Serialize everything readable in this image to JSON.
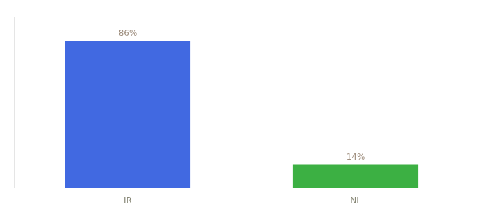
{
  "chart_data": {
    "type": "bar",
    "categories": [
      "IR",
      "NL"
    ],
    "values": [
      86,
      14
    ],
    "value_labels": [
      "86%",
      "14%"
    ],
    "colors": [
      "#4169E1",
      "#3CB043"
    ],
    "ylim": [
      0,
      100
    ],
    "grid": false,
    "tick_labels": "x",
    "data_labels": true
  }
}
